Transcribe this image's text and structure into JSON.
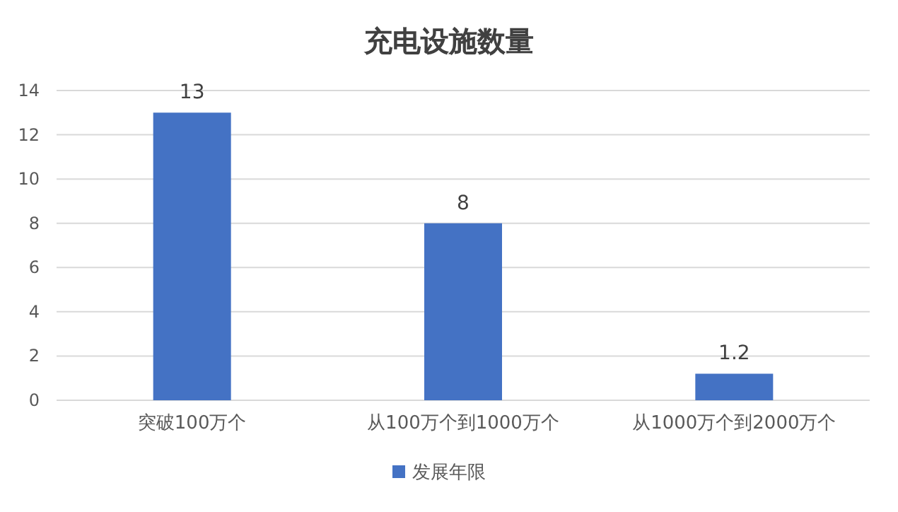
{
  "chart_data": {
    "type": "bar",
    "title": "充电设施数量",
    "categories": [
      "突破100万个",
      "从100万个到1000万个",
      "从1000万个到2000万个"
    ],
    "series": [
      {
        "name": "发展年限",
        "color": "#4472c4",
        "values": [
          13,
          8,
          1.2
        ]
      }
    ],
    "ylim": [
      0,
      14
    ],
    "yticks": [
      0,
      2,
      4,
      6,
      8,
      10,
      12,
      14
    ],
    "grid": "y",
    "legend": "bottom",
    "data_labels": true
  }
}
